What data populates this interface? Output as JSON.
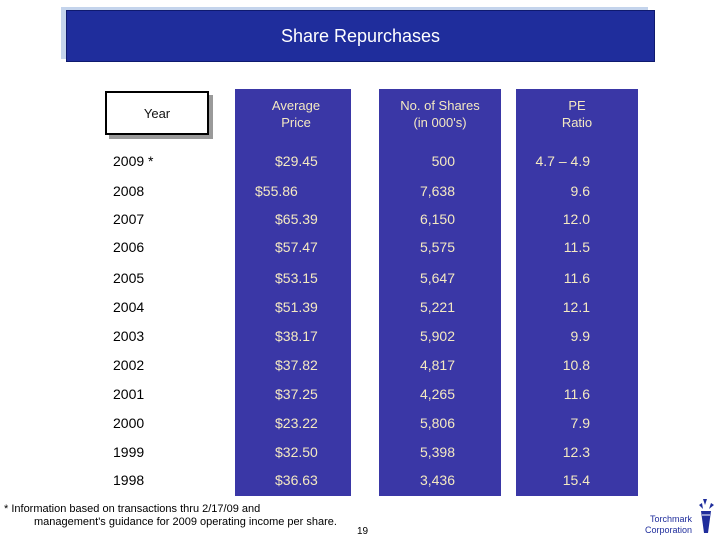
{
  "title": "Share Repurchases",
  "headers": {
    "year": "Year",
    "price": [
      "Average",
      "Price"
    ],
    "shares": [
      "No. of Shares",
      "(in 000's)"
    ],
    "pe": [
      "PE",
      "Ratio"
    ]
  },
  "rows": [
    {
      "year": "2009 *",
      "price": "$29.45",
      "shares": "500",
      "pe": "4.7 – 4.9"
    },
    {
      "year": "2008",
      "price": "$55.86",
      "shares": "7,638",
      "pe": "9.6"
    },
    {
      "year": "2007",
      "price": "$65.39",
      "shares": "6,150",
      "pe": "12.0"
    },
    {
      "year": "2006",
      "price": "$57.47",
      "shares": "5,575",
      "pe": "11.5"
    },
    {
      "year": "2005",
      "price": "$53.15",
      "shares": "5,647",
      "pe": "11.6"
    },
    {
      "year": "2004",
      "price": "$51.39",
      "shares": "5,221",
      "pe": "12.1"
    },
    {
      "year": "2003",
      "price": "$38.17",
      "shares": "5,902",
      "pe": "9.9"
    },
    {
      "year": "2002",
      "price": "$37.82",
      "shares": "4,817",
      "pe": "10.8"
    },
    {
      "year": "2001",
      "price": "$37.25",
      "shares": "4,265",
      "pe": "11.6"
    },
    {
      "year": "2000",
      "price": "$23.22",
      "shares": "5,806",
      "pe": "7.9"
    },
    {
      "year": "1999",
      "price": "$32.50",
      "shares": "5,398",
      "pe": "12.3"
    },
    {
      "year": "1998",
      "price": "$36.63",
      "shares": "3,436",
      "pe": "15.4"
    }
  ],
  "footnote": [
    "* Information based on transactions thru 2/17/09 and",
    "management's guidance for 2009 operating income per share."
  ],
  "page_number": "19",
  "logo": {
    "line1": "Torchmark",
    "line2": "Corporation"
  },
  "colors": {
    "title_bar": "#1f2d9c",
    "column_fill": "#3a37a6",
    "column_text": "#f4e9c2"
  }
}
